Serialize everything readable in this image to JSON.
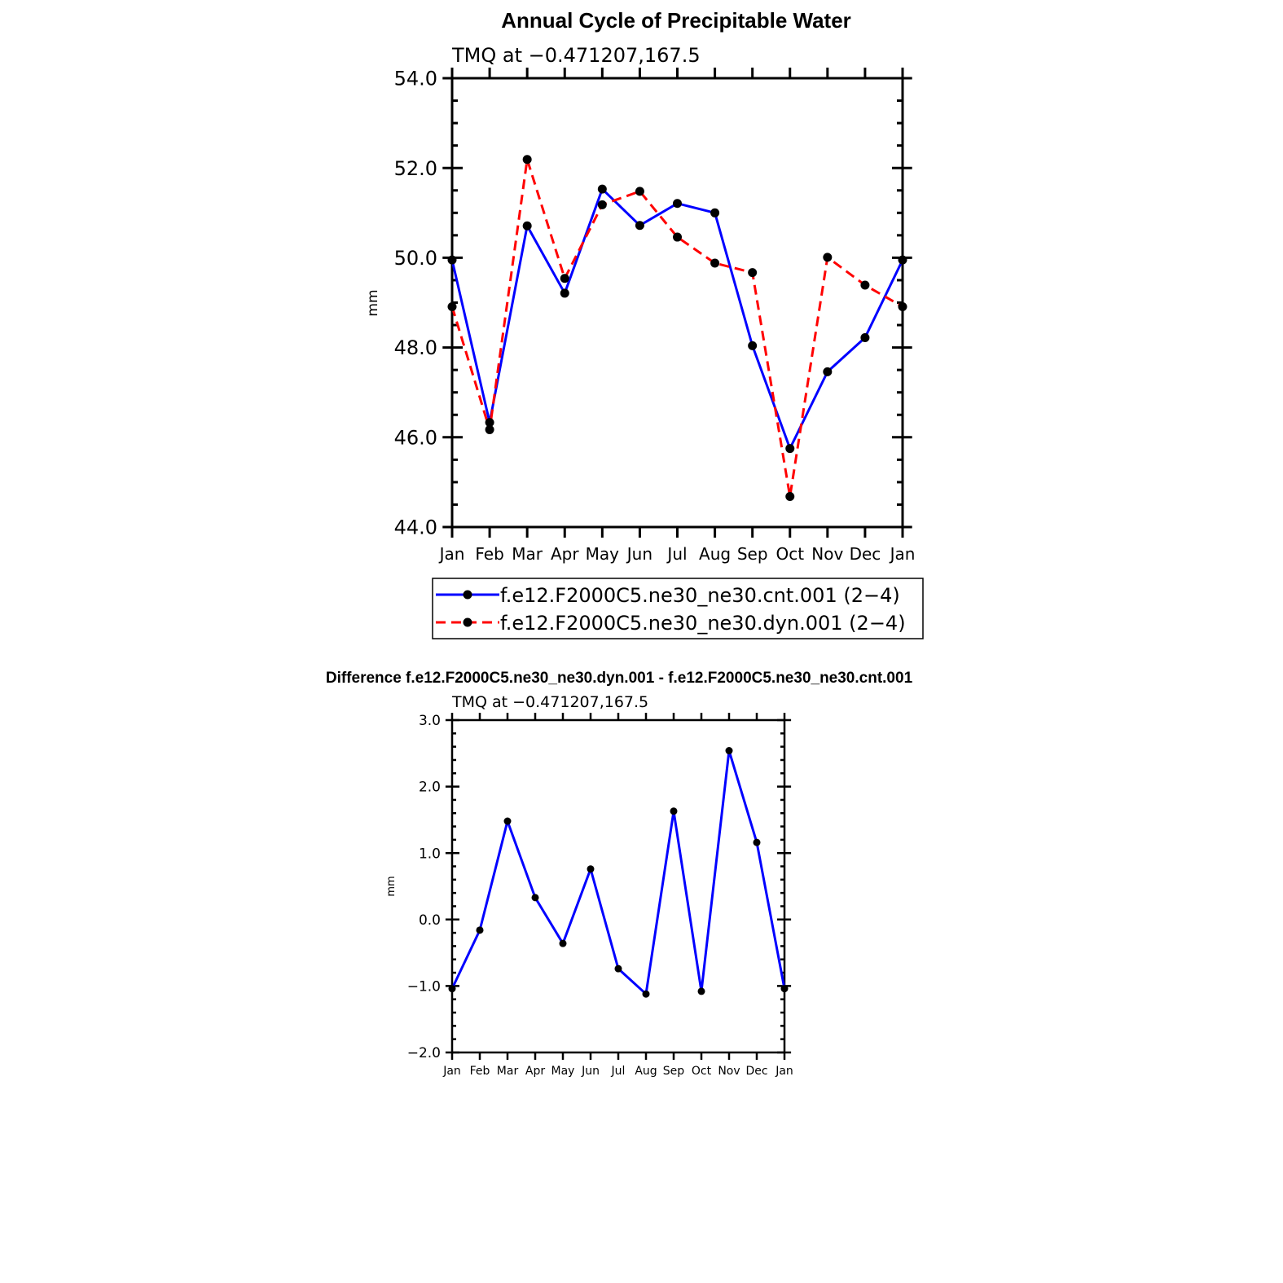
{
  "chart_data": [
    {
      "type": "line",
      "title": "Annual Cycle of Precipitable Water",
      "subtitle": "TMQ at −0.471207,167.5",
      "xlabel": "",
      "ylabel": "mm",
      "categories": [
        "Jan",
        "Feb",
        "Mar",
        "Apr",
        "May",
        "Jun",
        "Jul",
        "Aug",
        "Sep",
        "Oct",
        "Nov",
        "Dec",
        "Jan"
      ],
      "ylim": [
        44.0,
        54.0
      ],
      "yticks": [
        "44.0",
        "46.0",
        "48.0",
        "50.0",
        "52.0",
        "54.0"
      ],
      "legend_position": "bottom",
      "series": [
        {
          "name": "f.e12.F2000C5.ne30_ne30.cnt.001 (2−4)",
          "color": "#0000ff",
          "dash": "solid",
          "values": [
            49.95,
            46.33,
            50.71,
            49.21,
            51.53,
            50.72,
            51.21,
            51.0,
            48.04,
            45.75,
            47.46,
            48.22,
            49.95
          ]
        },
        {
          "name": "f.e12.F2000C5.ne30_ne30.dyn.001 (2−4)",
          "color": "#ff0000",
          "dash": "dashed",
          "values": [
            48.91,
            46.17,
            52.19,
            49.54,
            51.18,
            51.48,
            50.46,
            49.88,
            49.67,
            44.68,
            50.01,
            49.39,
            48.91
          ]
        }
      ]
    },
    {
      "type": "line",
      "title": "Difference f.e12.F2000C5.ne30_ne30.dyn.001 - f.e12.F2000C5.ne30_ne30.cnt.001",
      "subtitle": "TMQ at −0.471207,167.5",
      "xlabel": "",
      "ylabel": "mm",
      "categories": [
        "Jan",
        "Feb",
        "Mar",
        "Apr",
        "May",
        "Jun",
        "Jul",
        "Aug",
        "Sep",
        "Oct",
        "Nov",
        "Dec",
        "Jan"
      ],
      "ylim": [
        -2.0,
        3.0
      ],
      "yticks": [
        "−2.0",
        "−1.0",
        "0.0",
        "1.0",
        "2.0",
        "3.0"
      ],
      "series": [
        {
          "name": "",
          "color": "#0000ff",
          "dash": "solid",
          "values": [
            -1.04,
            -0.16,
            1.48,
            0.33,
            -0.36,
            0.76,
            -0.74,
            -1.12,
            1.63,
            -1.08,
            2.54,
            1.16,
            -1.04
          ]
        }
      ]
    }
  ]
}
